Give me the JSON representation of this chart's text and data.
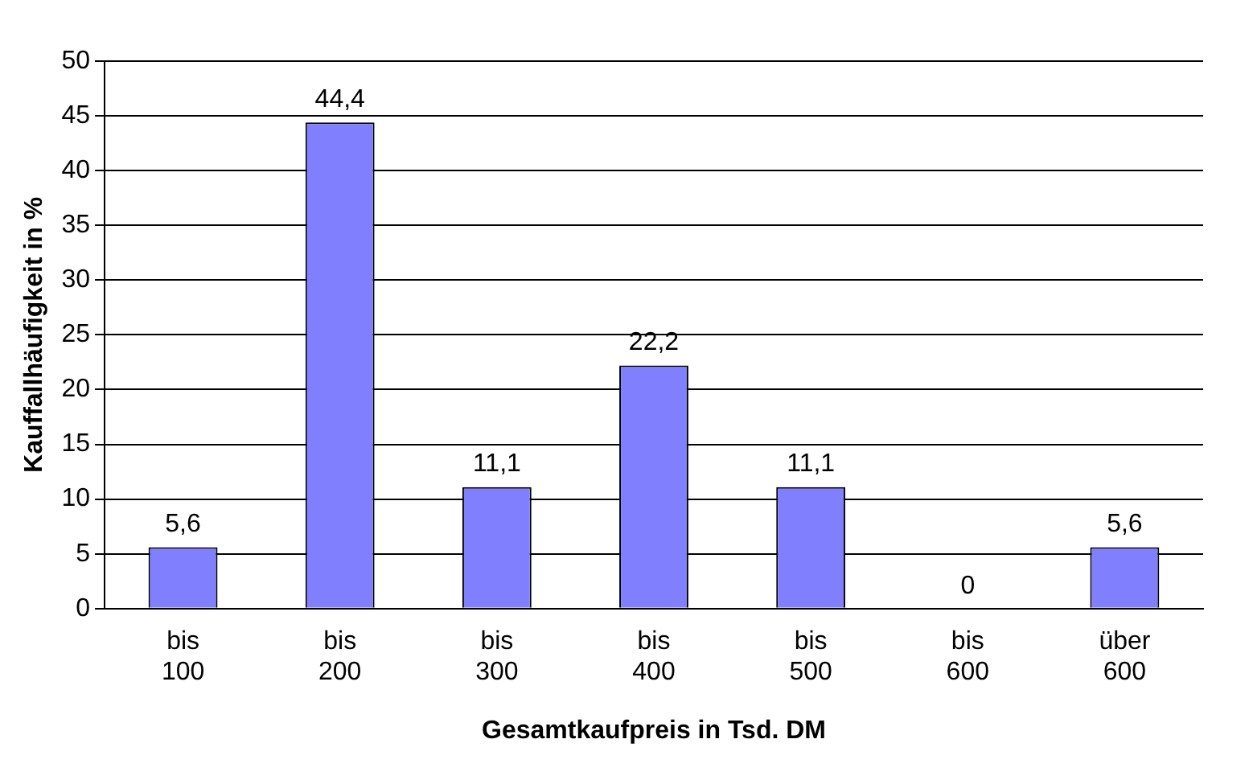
{
  "chart_data": {
    "type": "bar",
    "xlabel": "Gesamtkaufpreis in Tsd. DM",
    "ylabel": "Kauffallhäufigkeit in %",
    "categories": [
      "bis 100",
      "bis 200",
      "bis 300",
      "bis 400",
      "bis 500",
      "bis 600",
      "über 600"
    ],
    "values": [
      5.6,
      44.4,
      11.1,
      22.2,
      11.1,
      0,
      5.6
    ],
    "value_labels": [
      "5,6",
      "44,4",
      "11,1",
      "22,2",
      "11,1",
      "0",
      "5,6"
    ],
    "color": "#8080ff",
    "ylim": [
      0,
      50
    ],
    "yticks": [
      0,
      5,
      10,
      15,
      20,
      25,
      30,
      35,
      40,
      45,
      50
    ],
    "grid": "y",
    "legend": false
  }
}
